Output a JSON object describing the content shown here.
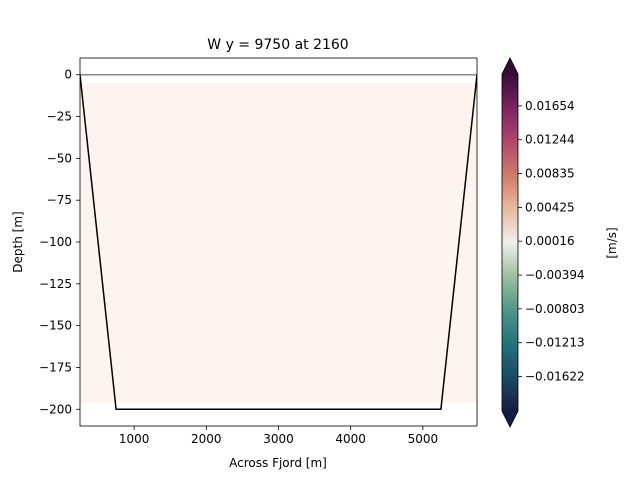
{
  "chart_data": {
    "type": "heatmap",
    "title": "W y = 9750 at 2160",
    "xlabel": "Across Fjord [m]",
    "ylabel": "Depth [m]",
    "xlim": [
      250,
      5750
    ],
    "ylim": [
      -210,
      10
    ],
    "x_ticks": [
      1000,
      2000,
      3000,
      4000,
      5000
    ],
    "x_tick_labels": [
      "1000",
      "2000",
      "3000",
      "4000",
      "5000"
    ],
    "y_ticks": [
      0,
      -25,
      -50,
      -75,
      -100,
      -125,
      -150,
      -175,
      -200
    ],
    "y_tick_labels": [
      "0",
      "−25",
      "−50",
      "−75",
      "−100",
      "−125",
      "−150",
      "−175",
      "−200"
    ],
    "field": {
      "value": 0.0006,
      "x_range": [
        250,
        5750
      ],
      "y_range": [
        -196,
        -5
      ]
    },
    "bathymetry": [
      [
        250,
        0
      ],
      [
        750,
        -200
      ],
      [
        5250,
        -200
      ],
      [
        5750,
        0
      ]
    ],
    "surface_line": {
      "y": 0,
      "color": "#888888"
    },
    "colorbar": {
      "label": "[m/s]",
      "range": [
        -0.0204,
        0.0204
      ],
      "extend": "both",
      "ticks": [
        0.01654,
        0.01244,
        0.00835,
        0.00425,
        0.00016,
        -0.00394,
        -0.00803,
        -0.01213,
        -0.01622
      ],
      "tick_labels": [
        "0.01654",
        "0.01244",
        "0.00835",
        "0.00425",
        "0.00016",
        "−0.00394",
        "−0.00803",
        "−0.01213",
        "−0.01622"
      ],
      "colormap": "curl",
      "stops": [
        "#151d44",
        "#1b4a64",
        "#22737a",
        "#4f9689",
        "#9dbf9f",
        "#f0efe9",
        "#e7b9a0",
        "#d07a6a",
        "#b0476b",
        "#7c2460",
        "#340d35"
      ],
      "field_color": "#fdf3ef"
    }
  }
}
